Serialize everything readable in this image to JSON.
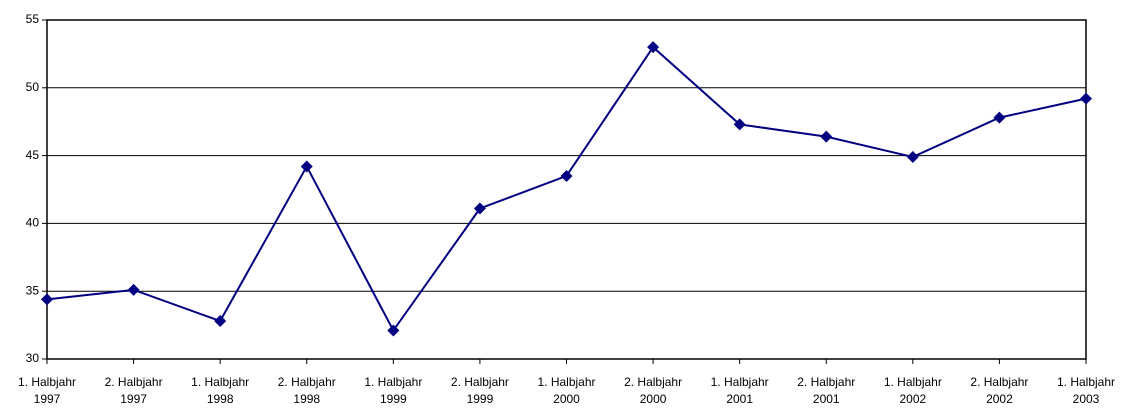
{
  "chart_data": {
    "type": "line",
    "categories": [
      [
        "1. Halbjahr",
        "1997"
      ],
      [
        "2. Halbjahr",
        "1997"
      ],
      [
        "1. Halbjahr",
        "1998"
      ],
      [
        "2. Halbjahr",
        "1998"
      ],
      [
        "1. Halbjahr",
        "1999"
      ],
      [
        "2. Halbjahr",
        "1999"
      ],
      [
        "1. Halbjahr",
        "2000"
      ],
      [
        "2. Halbjahr",
        "2000"
      ],
      [
        "1. Halbjahr",
        "2001"
      ],
      [
        "2. Halbjahr",
        "2001"
      ],
      [
        "1. Halbjahr",
        "2002"
      ],
      [
        "2. Halbjahr",
        "2002"
      ],
      [
        "1. Halbjahr",
        "2003"
      ]
    ],
    "values": [
      34.4,
      35.1,
      32.8,
      44.2,
      32.1,
      41.1,
      43.5,
      53.0,
      47.3,
      46.4,
      44.9,
      47.8,
      49.2
    ],
    "color": "#000080",
    "ylim": [
      30,
      55
    ],
    "yticks": [
      30,
      35,
      40,
      45,
      50,
      55
    ],
    "grid": true
  }
}
